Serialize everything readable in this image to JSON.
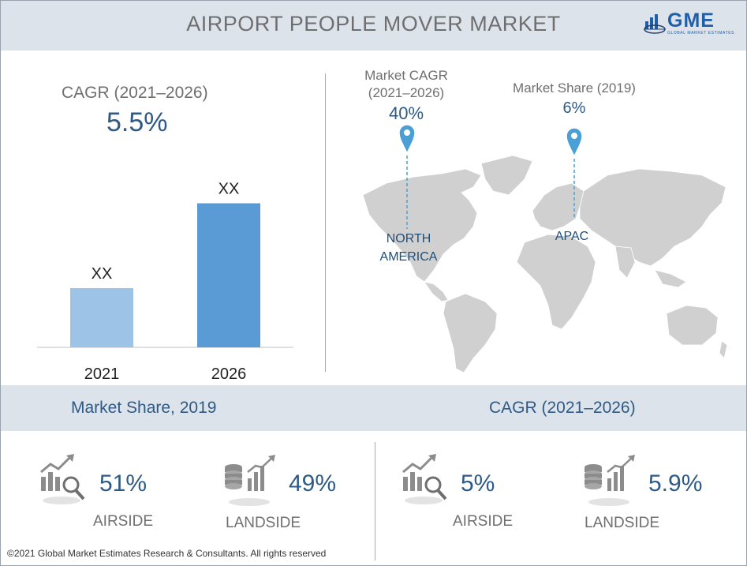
{
  "header": {
    "title": "AIRPORT PEOPLE MOVER MARKET"
  },
  "logo": {
    "text": "GME",
    "subtext": "GLOBAL MARKET ESTIMATES"
  },
  "cagr_summary": {
    "label": "CAGR (2021–2026)",
    "value": "5.5%"
  },
  "chart_data": {
    "type": "bar",
    "categories": [
      "2021",
      "2026"
    ],
    "values": [
      0.3,
      0.73
    ],
    "value_note": "relative bar heights, values unlabeled",
    "data_labels": [
      "XX",
      "XX"
    ],
    "colors": [
      "#9dc3e6",
      "#5b9bd5"
    ]
  },
  "map": {
    "north_america": {
      "label_line1": "Market CAGR",
      "label_line2": "(2021–2026)",
      "value": "40%",
      "region_line1": "NORTH",
      "region_line2": "AMERICA"
    },
    "apac": {
      "label": "Market Share (2019)",
      "value": "6%",
      "region": "APAC"
    }
  },
  "market_share": {
    "title": "Market Share, 2019",
    "items": [
      {
        "value": "51%",
        "label": "AIRSIDE",
        "icon": "chart-magnifier-icon"
      },
      {
        "value": "49%",
        "label": "LANDSIDE",
        "icon": "coins-chart-icon"
      }
    ]
  },
  "cagr_segments": {
    "title": "CAGR (2021–2026)",
    "items": [
      {
        "value": "5%",
        "label": "AIRSIDE",
        "icon": "chart-magnifier-icon"
      },
      {
        "value": "5.9%",
        "label": "LANDSIDE",
        "icon": "coins-chart-icon"
      }
    ]
  },
  "footer": {
    "copyright": "©2021 Global Market Estimates Research & Consultants. All rights reserved"
  },
  "colors": {
    "accent": "#2e5a85",
    "band": "#dde3ea",
    "map": "#d0d0d0",
    "pin": "#4a9fd4"
  }
}
